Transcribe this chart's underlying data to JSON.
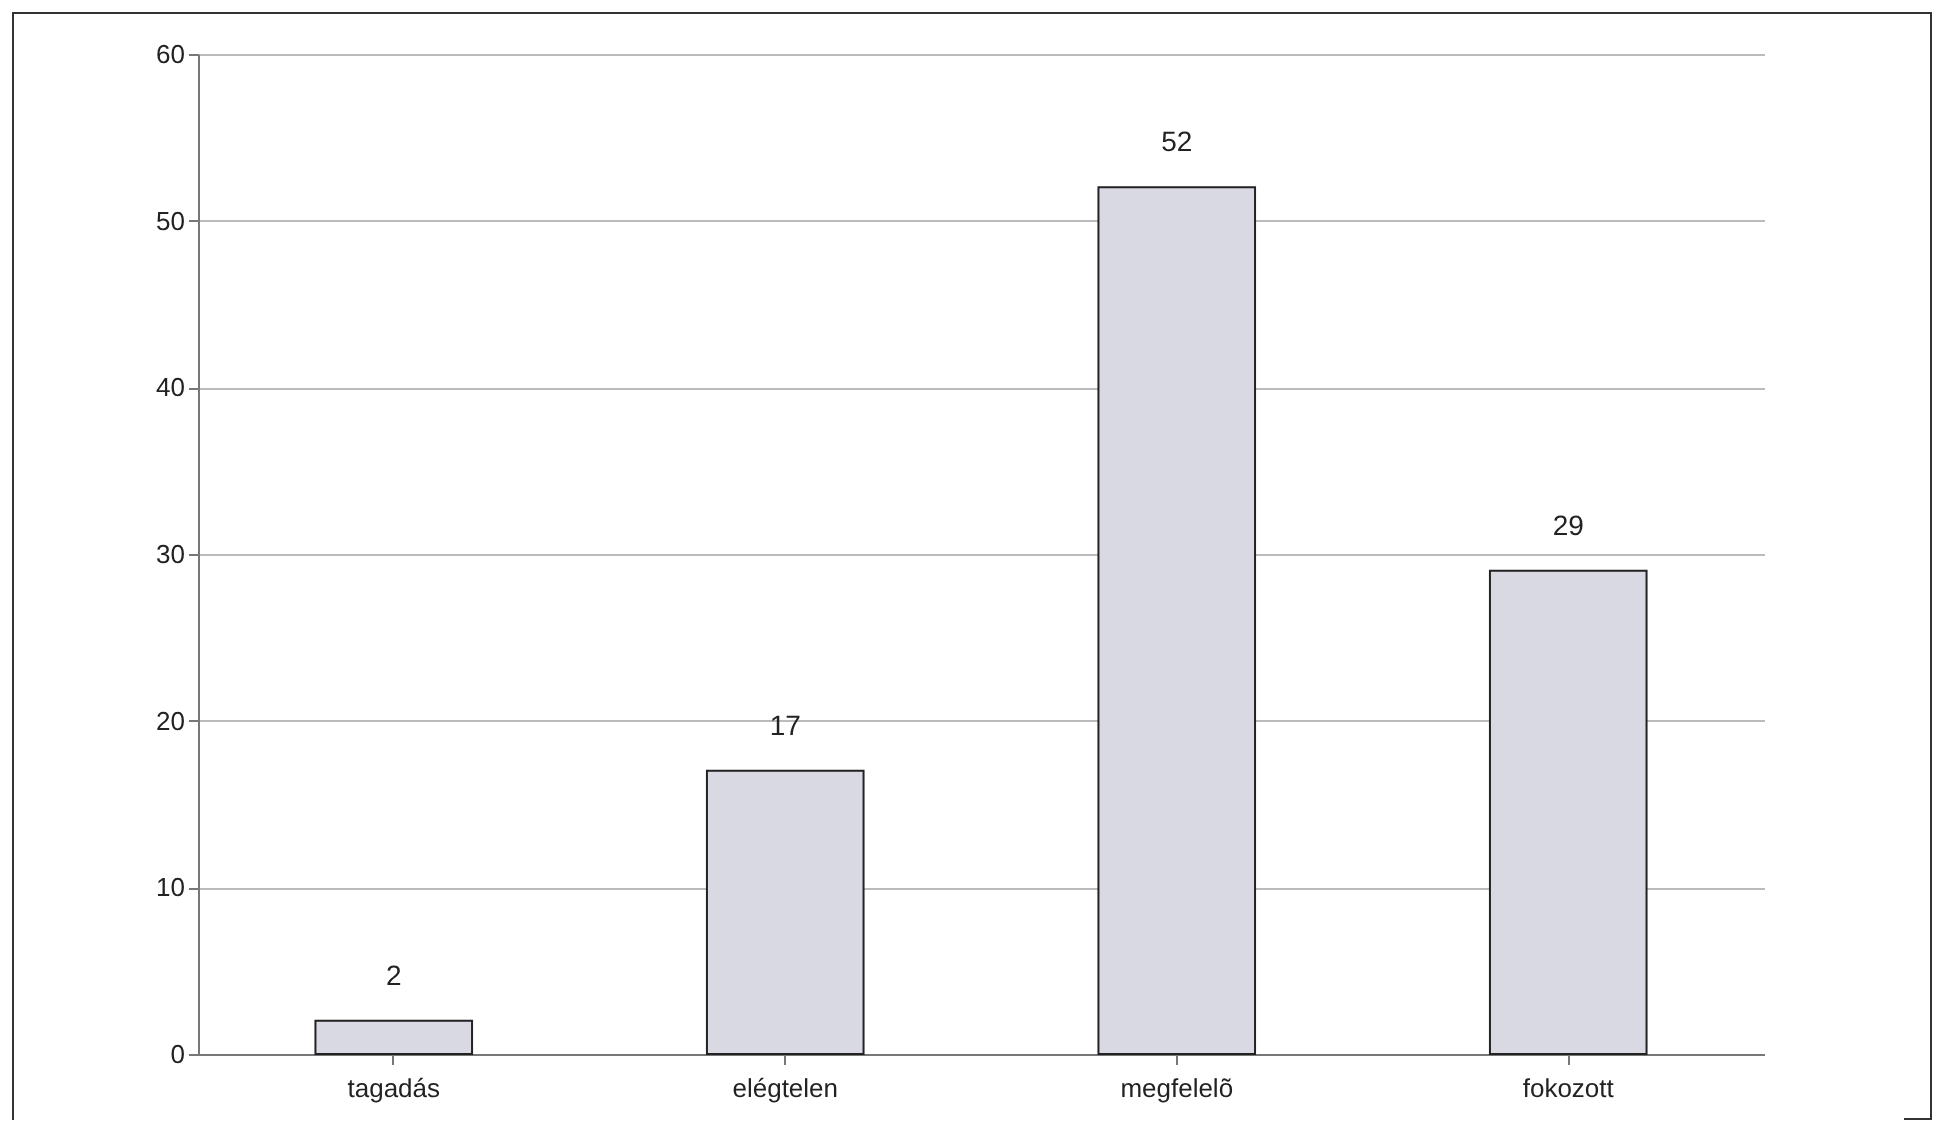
{
  "chart_data": {
    "type": "bar",
    "categories": [
      "tagadás",
      "elégtelen",
      "megfelelõ",
      "fokozott"
    ],
    "values": [
      2,
      17,
      52,
      29
    ],
    "color": "#d9d9e3",
    "ylim": [
      0,
      60
    ],
    "yticks": [
      0,
      10,
      20,
      30,
      40,
      50,
      60
    ],
    "grid": "y",
    "data_labels": true
  }
}
